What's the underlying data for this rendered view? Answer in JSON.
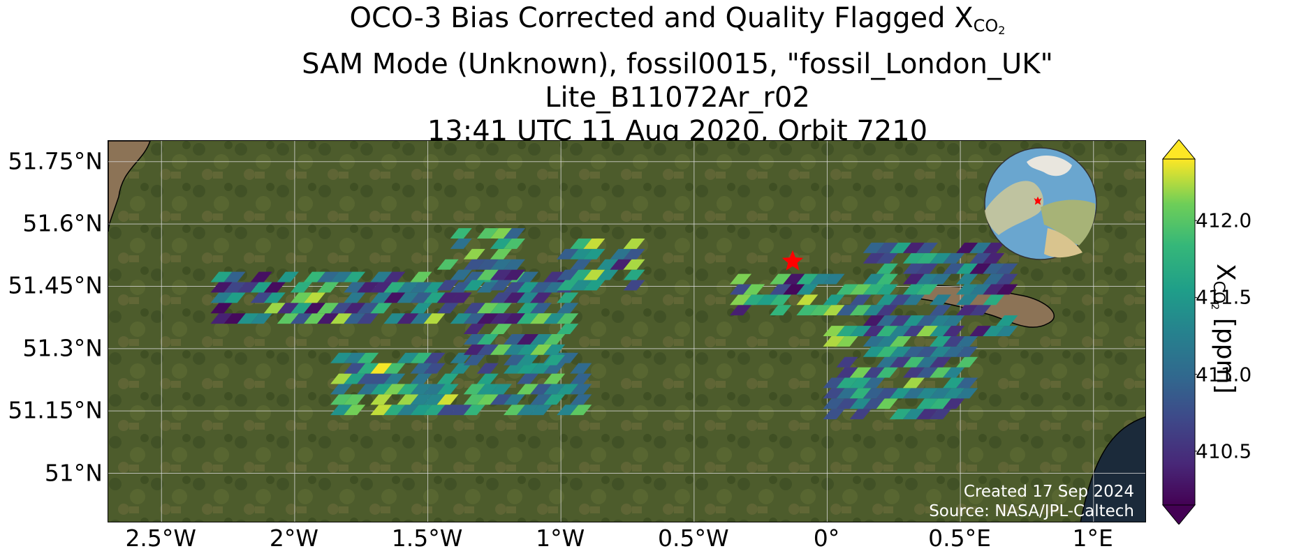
{
  "title": {
    "line1_prefix": "OCO-3 Bias Corrected and Quality Flagged X",
    "line1_sub": "CO",
    "line1_subsub": "2",
    "line2": "SAM Mode (Unknown), fossil0015, \"fossil_London_UK\"",
    "line3": "Lite_B11072Ar_r02",
    "line4": "13:41 UTC 11 Aug 2020, Orbit 7210"
  },
  "map": {
    "lon_range": [
      -2.7,
      1.2
    ],
    "lat_range": [
      50.88,
      51.8
    ],
    "lat_ticks": [
      {
        "value": 51.75,
        "label": "51.75°N"
      },
      {
        "value": 51.6,
        "label": "51.6°N"
      },
      {
        "value": 51.45,
        "label": "51.45°N"
      },
      {
        "value": 51.3,
        "label": "51.3°N"
      },
      {
        "value": 51.15,
        "label": "51.15°N"
      },
      {
        "value": 51.0,
        "label": "51°N"
      }
    ],
    "lon_ticks": [
      {
        "value": -2.5,
        "label": "2.5°W"
      },
      {
        "value": -2.0,
        "label": "2°W"
      },
      {
        "value": -1.5,
        "label": "1.5°W"
      },
      {
        "value": -1.0,
        "label": "1°W"
      },
      {
        "value": -0.5,
        "label": "0.5°W"
      },
      {
        "value": 0.0,
        "label": "0°"
      },
      {
        "value": 0.5,
        "label": "0.5°E"
      },
      {
        "value": 1.0,
        "label": "1°E"
      }
    ],
    "grid": true,
    "target_marker": {
      "name": "star-marker",
      "lon": -0.13,
      "lat": 51.51,
      "color": "#ff0000"
    },
    "colors": {
      "background": "#4a5a2a",
      "gridline": "#d8d8d8",
      "coast": "#000000",
      "sea": "#1b2a3a",
      "estuary": "#8c7356",
      "star": "#ff0000"
    },
    "inset_globe": {
      "name": "globe-inset-icon",
      "marker_color": "#ff0000"
    }
  },
  "credits": {
    "created": "Created 17 Sep 2024",
    "source": "Source: NASA/JPL-Caltech"
  },
  "colorbar": {
    "colormap": "viridis",
    "range": [
      410.15,
      412.4
    ],
    "extend": "both",
    "ticks": [
      {
        "value": 412.0,
        "label": "412.0"
      },
      {
        "value": 411.5,
        "label": "411.5"
      },
      {
        "value": 411.0,
        "label": "411.0"
      },
      {
        "value": 410.5,
        "label": "410.5"
      }
    ],
    "label_prefix": "X",
    "label_sub": "CO",
    "label_subsub": "2",
    "label_suffix": " [ppm]"
  },
  "chart_data": {
    "type": "heatmap",
    "variable": "XCO2 [ppm]",
    "cell_size_deg": [
      0.05,
      0.025
    ],
    "swaths": [
      {
        "lon": [
          -2.3,
          -0.95
        ],
        "lat": [
          51.36,
          51.47
        ],
        "value_range": [
          410.2,
          412.3
        ]
      },
      {
        "lon": [
          -1.45,
          -1.15
        ],
        "lat": [
          51.44,
          51.57
        ],
        "value_range": [
          410.3,
          412.3
        ]
      },
      {
        "lon": [
          -1.0,
          -0.7
        ],
        "lat": [
          51.44,
          51.56
        ],
        "value_range": [
          410.3,
          412.3
        ]
      },
      {
        "lon": [
          -1.85,
          -0.9
        ],
        "lat": [
          51.14,
          51.27
        ],
        "value_range": [
          410.6,
          412.4
        ]
      },
      {
        "lon": [
          -1.35,
          -0.95
        ],
        "lat": [
          51.26,
          51.37
        ],
        "value_range": [
          410.3,
          412.3
        ]
      },
      {
        "lon": [
          -0.35,
          0.15
        ],
        "lat": [
          51.38,
          51.47
        ],
        "value_range": [
          410.2,
          412.3
        ]
      },
      {
        "lon": [
          0.15,
          0.7
        ],
        "lat": [
          51.33,
          51.55
        ],
        "value_range": [
          410.2,
          411.9
        ]
      },
      {
        "lon": [
          0.0,
          0.5
        ],
        "lat": [
          51.13,
          51.34
        ],
        "value_range": [
          410.4,
          412.3
        ]
      }
    ]
  }
}
